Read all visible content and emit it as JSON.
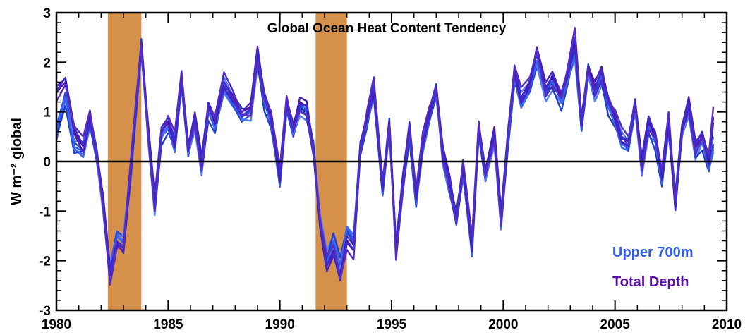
{
  "chart_data": {
    "type": "line",
    "title": "Global Ocean Heat Content Tendency",
    "ylabel": "W m⁻² global",
    "xlabel": "",
    "xlim": [
      1980,
      2010
    ],
    "ylim": [
      -3,
      3
    ],
    "x_ticks": [
      1980,
      1985,
      1990,
      1995,
      2000,
      2005,
      2010
    ],
    "y_ticks": [
      -3,
      -2,
      -1,
      0,
      1,
      2,
      3
    ],
    "zero_line": true,
    "grid": false,
    "legend_position": "bottom-right",
    "shaded_periods": [
      {
        "start": 1982.3,
        "end": 1983.8,
        "color": "#d5914a"
      },
      {
        "start": 1991.6,
        "end": 1993.0,
        "color": "#d5914a"
      }
    ],
    "series_colors": {
      "upper_700m": "#2f5bf0",
      "total_depth": "#5b11a8"
    },
    "legend": [
      {
        "label": "Upper 700m",
        "color": "#2f5bf0"
      },
      {
        "label": "Total Depth",
        "color": "#5b11a8"
      }
    ],
    "series": [
      {
        "group": "Upper 700m",
        "x": [
          1980.0,
          1980.4,
          1980.8,
          1981.2,
          1981.5,
          1981.8,
          1982.1,
          1982.4,
          1982.7,
          1983.0,
          1983.3,
          1983.6,
          1983.8,
          1984.1,
          1984.4,
          1984.7,
          1985.0,
          1985.3,
          1985.6,
          1985.9,
          1986.2,
          1986.5,
          1986.8,
          1987.1,
          1987.5,
          1987.9,
          1988.3,
          1988.7,
          1989.0,
          1989.3,
          1989.6,
          1990.0,
          1990.3,
          1990.6,
          1990.9,
          1991.2,
          1991.5,
          1991.8,
          1992.1,
          1992.4,
          1992.7,
          1993.0,
          1993.3,
          1993.6,
          1993.9,
          1994.2,
          1994.6,
          1994.9,
          1995.2,
          1995.5,
          1995.8,
          1996.1,
          1996.4,
          1996.7,
          1997.0,
          1997.3,
          1997.6,
          1997.9,
          1998.2,
          1998.6,
          1998.9,
          1999.2,
          1999.6,
          1999.9,
          2000.2,
          2000.5,
          2000.8,
          2001.2,
          2001.5,
          2001.9,
          2002.2,
          2002.6,
          2002.9,
          2003.2,
          2003.5,
          2003.8,
          2004.1,
          2004.4,
          2004.7,
          2005.0,
          2005.3,
          2005.6,
          2005.9,
          2006.2,
          2006.5,
          2006.8,
          2007.1,
          2007.4,
          2007.7,
          2008.0,
          2008.3,
          2008.6,
          2008.9,
          2009.2,
          2009.4
        ],
        "values": [
          0.6,
          1.3,
          0.3,
          0.2,
          0.8,
          0.1,
          -0.9,
          -2.2,
          -1.5,
          -1.6,
          -0.4,
          1.2,
          2.3,
          0.6,
          -0.9,
          0.5,
          0.7,
          0.3,
          1.6,
          0.2,
          0.8,
          -0.1,
          1.0,
          0.7,
          1.5,
          1.2,
          0.9,
          1.0,
          2.1,
          1.2,
          0.8,
          -0.4,
          1.1,
          0.6,
          1.1,
          1.0,
          0.3,
          -1.2,
          -2.0,
          -1.6,
          -2.1,
          -1.4,
          -1.6,
          0.3,
          0.8,
          1.4,
          -0.6,
          0.7,
          -1.7,
          -0.5,
          0.6,
          -0.8,
          0.3,
          0.9,
          1.4,
          0.1,
          -0.5,
          -1.1,
          -0.2,
          -1.8,
          0.6,
          -0.3,
          0.5,
          -1.2,
          0.4,
          1.7,
          1.2,
          1.5,
          2.0,
          1.4,
          1.6,
          1.2,
          1.7,
          2.2,
          0.7,
          1.8,
          1.4,
          1.7,
          1.1,
          0.8,
          0.4,
          0.3,
          1.1,
          -0.1,
          0.7,
          0.4,
          -0.4,
          0.7,
          -0.8,
          0.6,
          1.1,
          0.2,
          0.4,
          -0.1,
          0.3
        ]
      },
      {
        "group": "Total Depth",
        "x": [
          1980.0,
          1980.4,
          1980.8,
          1981.2,
          1981.5,
          1981.8,
          1982.1,
          1982.4,
          1982.7,
          1983.0,
          1983.3,
          1983.6,
          1983.8,
          1984.1,
          1984.4,
          1984.7,
          1985.0,
          1985.3,
          1985.6,
          1985.9,
          1986.2,
          1986.5,
          1986.8,
          1987.1,
          1987.5,
          1987.9,
          1988.3,
          1988.7,
          1989.0,
          1989.3,
          1989.6,
          1990.0,
          1990.3,
          1990.6,
          1990.9,
          1991.2,
          1991.5,
          1991.8,
          1992.1,
          1992.4,
          1992.7,
          1993.0,
          1993.3,
          1993.6,
          1993.9,
          1994.2,
          1994.6,
          1994.9,
          1995.2,
          1995.5,
          1995.8,
          1996.1,
          1996.4,
          1996.7,
          1997.0,
          1997.3,
          1997.6,
          1997.9,
          1998.2,
          1998.6,
          1998.9,
          1999.2,
          1999.6,
          1999.9,
          2000.2,
          2000.5,
          2000.8,
          2001.2,
          2001.5,
          2001.9,
          2002.2,
          2002.6,
          2002.9,
          2003.2,
          2003.5,
          2003.8,
          2004.1,
          2004.4,
          2004.7,
          2005.0,
          2005.3,
          2005.6,
          2005.9,
          2006.2,
          2006.5,
          2006.8,
          2007.1,
          2007.4,
          2007.7,
          2008.0,
          2008.3,
          2008.6,
          2008.9,
          2009.2,
          2009.4
        ],
        "values": [
          1.4,
          1.6,
          0.6,
          0.3,
          0.9,
          0.2,
          -0.8,
          -2.3,
          -1.7,
          -1.8,
          -0.3,
          1.3,
          2.4,
          0.7,
          -0.8,
          0.6,
          0.8,
          0.4,
          1.7,
          0.3,
          0.9,
          0.0,
          1.1,
          0.8,
          1.6,
          1.3,
          1.0,
          1.1,
          2.2,
          1.3,
          0.9,
          -0.3,
          1.2,
          0.7,
          1.2,
          1.1,
          0.2,
          -1.3,
          -2.1,
          -1.8,
          -2.3,
          -1.6,
          -1.8,
          0.2,
          0.9,
          1.5,
          -0.5,
          0.8,
          -1.8,
          -0.4,
          0.7,
          -0.7,
          0.4,
          1.0,
          1.5,
          0.2,
          -0.4,
          -1.2,
          -0.1,
          -1.7,
          0.7,
          -0.2,
          0.6,
          -1.1,
          0.5,
          1.8,
          1.3,
          1.6,
          2.3,
          1.5,
          1.7,
          1.3,
          1.8,
          2.5,
          0.8,
          1.9,
          1.5,
          1.8,
          1.2,
          0.9,
          0.5,
          0.4,
          1.2,
          0.0,
          0.8,
          0.5,
          -0.3,
          0.8,
          -0.9,
          0.7,
          1.2,
          0.3,
          0.5,
          0.0,
          0.9
        ]
      }
    ]
  }
}
